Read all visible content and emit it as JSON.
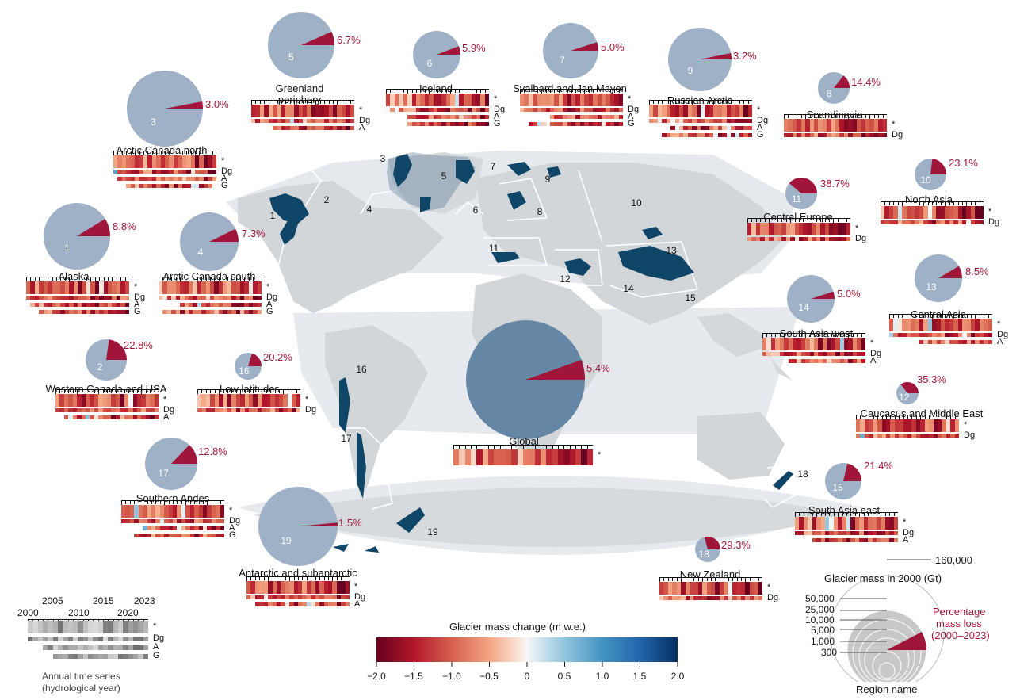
{
  "colors": {
    "pie_base": "#9fb1c6",
    "pie_global": "#6686a6",
    "loss": "#a0163a",
    "land": "#d4d6d8",
    "region": "#e4e8ec",
    "glacier": "#0f4566"
  },
  "regions": [
    {
      "id": "1",
      "name": "Alaska",
      "pct": "8.8%",
      "loss": 0.088,
      "rows": [
        "*",
        "Dg",
        "A",
        "G"
      ],
      "seed": 1
    },
    {
      "id": "2",
      "name": "Western Canada and USA",
      "pct": "22.8%",
      "loss": 0.228,
      "rows": [
        "*",
        "Dg",
        "A"
      ],
      "seed": 2
    },
    {
      "id": "3",
      "name": "Arctic Canada north",
      "pct": "3.0%",
      "loss": 0.03,
      "rows": [
        "*",
        "Dg",
        "A",
        "G"
      ],
      "seed": 3
    },
    {
      "id": "4",
      "name": "Arctic Canada south",
      "pct": "7.3%",
      "loss": 0.073,
      "rows": [
        "*",
        "Dg",
        "A",
        "G"
      ],
      "seed": 4
    },
    {
      "id": "5",
      "name": "Greenland periphery",
      "pct": "6.7%",
      "loss": 0.067,
      "rows": [
        "*",
        "Dg",
        "A"
      ],
      "seed": 5
    },
    {
      "id": "6",
      "name": "Iceland",
      "pct": "5.9%",
      "loss": 0.059,
      "rows": [
        "*",
        "Dg",
        "A",
        "G"
      ],
      "seed": 6
    },
    {
      "id": "7",
      "name": "Svalbard and Jan Mayen",
      "pct": "5.0%",
      "loss": 0.05,
      "rows": [
        "*",
        "Dg",
        "A",
        "G"
      ],
      "seed": 7
    },
    {
      "id": "9",
      "name": "Russian Arctic",
      "pct": "3.2%",
      "loss": 0.032,
      "rows": [
        "*",
        "Dg",
        "A",
        "G"
      ],
      "seed": 9
    },
    {
      "id": "8",
      "name": "Scandinavia",
      "pct": "14.4%",
      "loss": 0.144,
      "rows": [
        "*",
        "Dg"
      ],
      "seed": 8
    },
    {
      "id": "10",
      "name": "North Asia",
      "pct": "23.1%",
      "loss": 0.231,
      "rows": [
        "*",
        "Dg"
      ],
      "seed": 10
    },
    {
      "id": "11",
      "name": "Central Europe",
      "pct": "38.7%",
      "loss": 0.387,
      "rows": [
        "*",
        "Dg"
      ],
      "seed": 11
    },
    {
      "id": "13",
      "name": "Central Asia",
      "pct": "8.5%",
      "loss": 0.085,
      "rows": [
        "*",
        "Dg",
        "A"
      ],
      "seed": 13
    },
    {
      "id": "14",
      "name": "South Asia west",
      "pct": "5.0%",
      "loss": 0.05,
      "rows": [
        "*",
        "Dg",
        "A"
      ],
      "seed": 14
    },
    {
      "id": "12",
      "name": "Caucasus and Middle East",
      "pct": "35.3%",
      "loss": 0.353,
      "rows": [
        "*",
        "Dg"
      ],
      "seed": 12
    },
    {
      "id": "15",
      "name": "South Asia east",
      "pct": "21.4%",
      "loss": 0.214,
      "rows": [
        "*",
        "Dg",
        "A"
      ],
      "seed": 15
    },
    {
      "id": "18",
      "name": "New Zealand",
      "pct": "29.3%",
      "loss": 0.293,
      "rows": [
        "*",
        "Dg"
      ],
      "seed": 18
    },
    {
      "id": "16",
      "name": "Low latitudes",
      "pct": "20.2%",
      "loss": 0.202,
      "rows": [
        "*",
        "Dg"
      ],
      "seed": 16
    },
    {
      "id": "17",
      "name": "Southern Andes",
      "pct": "12.8%",
      "loss": 0.128,
      "rows": [
        "*",
        "Dg",
        "A",
        "G"
      ],
      "seed": 17
    },
    {
      "id": "19",
      "name": "Antarctic and subantarctic",
      "pct": "1.5%",
      "loss": 0.015,
      "rows": [
        "*",
        "Dg",
        "A"
      ],
      "seed": 19
    },
    {
      "id": "",
      "name": "Global",
      "pct": "5.4%",
      "loss": 0.054,
      "rows": [
        "*"
      ],
      "seed": 20
    }
  ],
  "map_numbers": [
    "1",
    "2",
    "3",
    "4",
    "5",
    "6",
    "7",
    "8",
    "9",
    "10",
    "11",
    "12",
    "13",
    "14",
    "15",
    "16",
    "17",
    "18",
    "19"
  ],
  "colorbar": {
    "title": "Glacier mass change (m w.e.)",
    "ticks": [
      "−2.0",
      "−1.5",
      "−1.0",
      "−0.5",
      "0",
      "0.5",
      "1.0",
      "1.5",
      "2.0"
    ],
    "min": -2.0,
    "max": 2.0
  },
  "time_legend": {
    "years_top": [
      "2005",
      "2015",
      "2023"
    ],
    "years_bottom": [
      "2000",
      "2010",
      "2020"
    ],
    "rows": [
      "*",
      "Dg",
      "A",
      "G"
    ],
    "caption_line1": "Annual time series",
    "caption_line2": "(hydrological year)"
  },
  "size_legend": {
    "max_label": "160,000",
    "title": "Glacier mass in 2000 (Gt)",
    "scale_labels": [
      "50,000",
      "25,000",
      "10,000",
      "5,000",
      "1,000",
      "300"
    ],
    "loss_line1": "Percentage",
    "loss_line2": "mass loss",
    "loss_line3": "(2000–2023)",
    "region_label": "Region name"
  }
}
